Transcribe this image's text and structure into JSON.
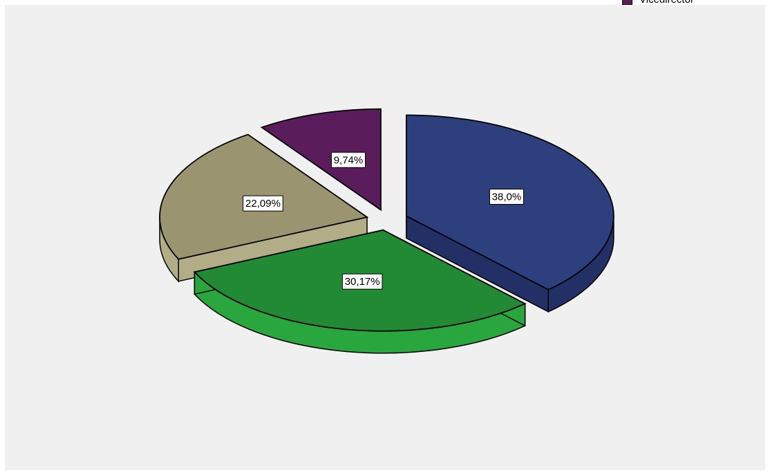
{
  "chart_data": {
    "type": "pie",
    "style": "3d-exploded",
    "series": [
      {
        "value": 38.0,
        "label": "38,0%",
        "color": "#2e3f7e",
        "side_color": "#233066"
      },
      {
        "value": 30.17,
        "label": "30,17%",
        "color": "#228a34",
        "side_color": "#2aa63e"
      },
      {
        "value": 22.09,
        "label": "22,09%",
        "color": "#9b9470",
        "side_color": "#b3ad87"
      },
      {
        "value": 9.74,
        "label": "9,74%",
        "color": "#5b1c5c",
        "side_color": "#4a164b"
      }
    ],
    "legend": {
      "position": "top-right",
      "entries": [
        {
          "name": "Vicedirector",
          "color": "#5b1c5c"
        }
      ]
    }
  }
}
